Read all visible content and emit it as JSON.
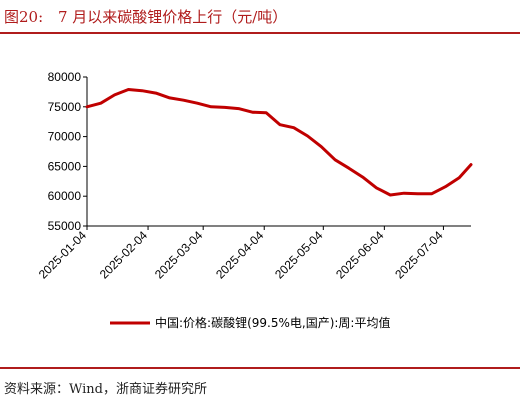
{
  "title": {
    "figure_no": "图20:",
    "text": "7 月以来碳酸锂价格上行（元/吨）"
  },
  "source": "资料来源：Wind，浙商证券研究所",
  "colors": {
    "accent": "#b01c1c",
    "series": "#c00000"
  },
  "chart_data": {
    "type": "line",
    "title": "",
    "xlabel": "",
    "ylabel": "",
    "ylim": [
      55000,
      80000
    ],
    "yticks": [
      55000,
      60000,
      65000,
      70000,
      75000,
      80000
    ],
    "xticks": [
      "2025-01-04",
      "2025-02-04",
      "2025-03-04",
      "2025-04-04",
      "2025-05-04",
      "2025-06-04",
      "2025-07-04"
    ],
    "xlim": [
      "2025-01-04",
      "2025-07-18"
    ],
    "legend_position": "bottom",
    "grid": false,
    "series": [
      {
        "name": "中国:价格:碳酸锂(99.5%电,国产):周:平均值",
        "x": [
          "2025-01-04",
          "2025-01-11",
          "2025-01-18",
          "2025-01-25",
          "2025-02-01",
          "2025-02-08",
          "2025-02-15",
          "2025-02-22",
          "2025-03-01",
          "2025-03-08",
          "2025-03-15",
          "2025-03-22",
          "2025-03-29",
          "2025-04-05",
          "2025-04-12",
          "2025-04-19",
          "2025-04-26",
          "2025-05-03",
          "2025-05-10",
          "2025-05-17",
          "2025-05-24",
          "2025-05-31",
          "2025-06-07",
          "2025-06-14",
          "2025-06-21",
          "2025-06-28",
          "2025-07-05",
          "2025-07-12",
          "2025-07-18"
        ],
        "y": [
          75000,
          75600,
          77000,
          77900,
          77700,
          77300,
          76500,
          76100,
          75600,
          75000,
          74900,
          74700,
          74100,
          74000,
          72000,
          71500,
          70100,
          68300,
          66100,
          64700,
          63200,
          61400,
          60200,
          60500,
          60400,
          60400,
          61600,
          63100,
          65300
        ]
      }
    ]
  }
}
